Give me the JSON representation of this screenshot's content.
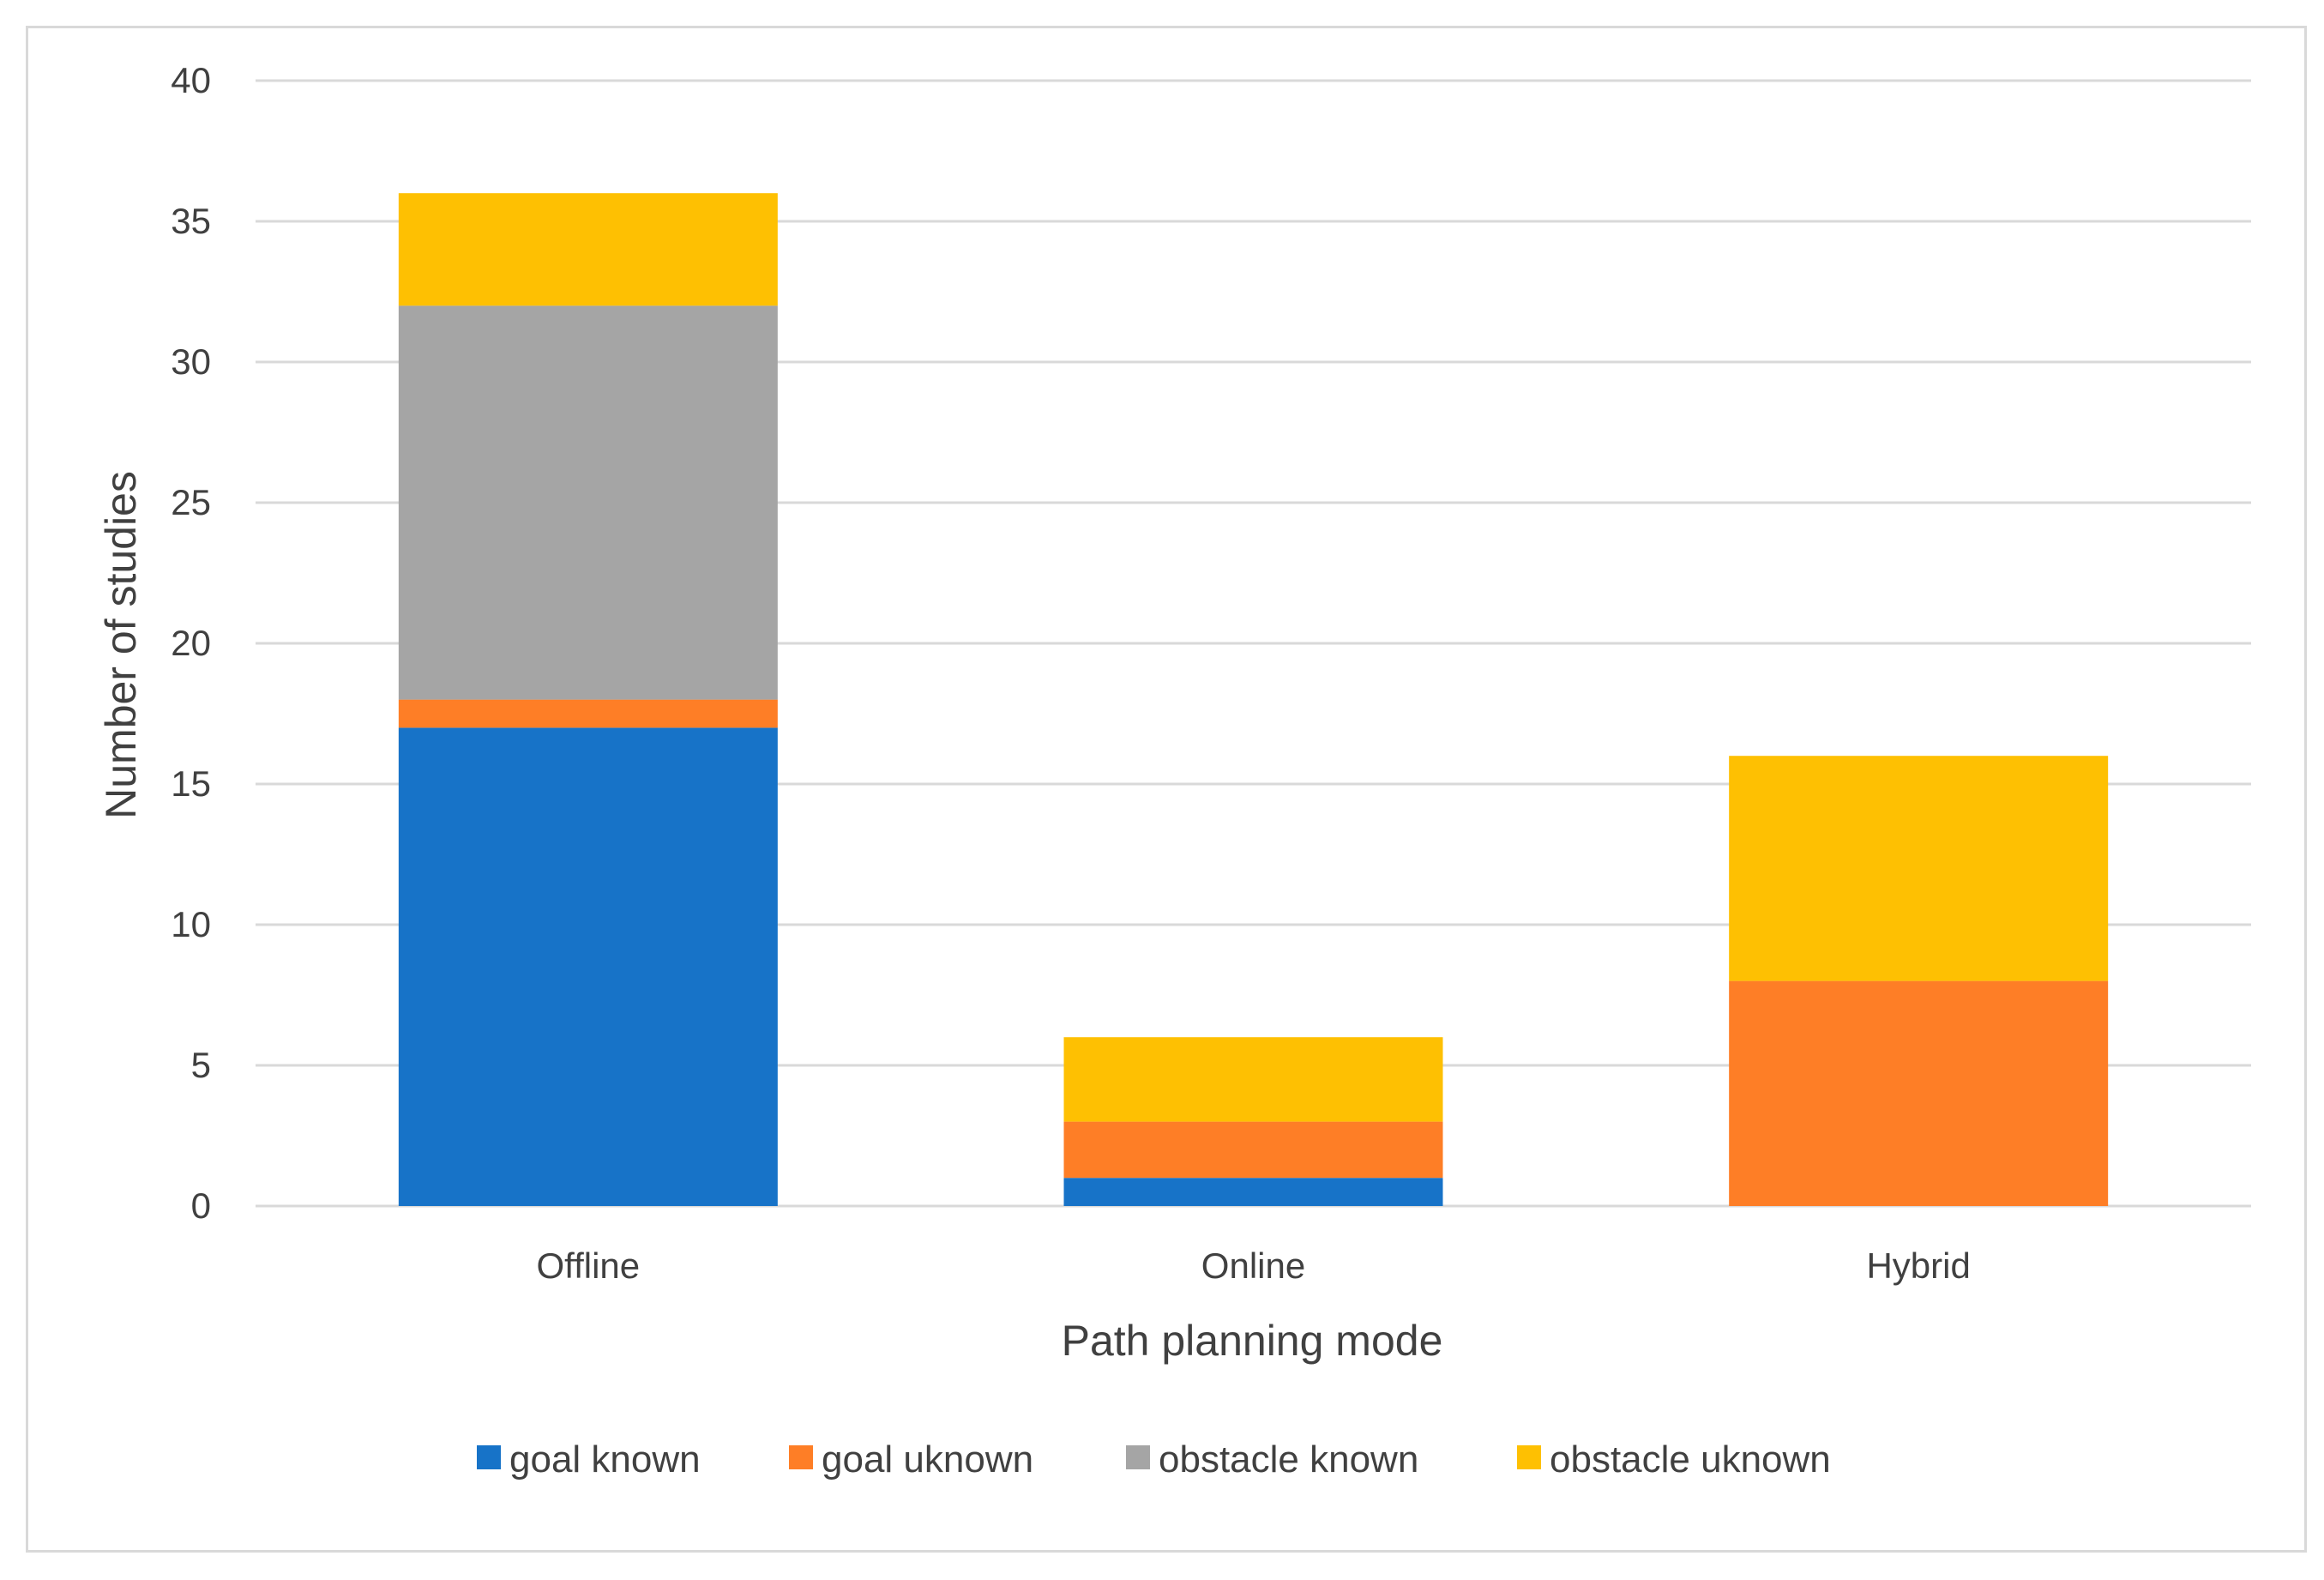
{
  "chart_data": {
    "type": "bar",
    "stacked": true,
    "categories": [
      "Offline",
      "Online",
      "Hybrid"
    ],
    "series": [
      {
        "name": "goal known",
        "color": "#1773C8",
        "values": [
          17,
          1,
          0
        ]
      },
      {
        "name": "goal uknown",
        "color": "#FE7E26",
        "values": [
          1,
          2,
          8
        ]
      },
      {
        "name": "obstacle known",
        "color": "#A5A5A5",
        "values": [
          14,
          0,
          0
        ]
      },
      {
        "name": "obstacle uknown",
        "color": "#FEC002",
        "values": [
          4,
          3,
          8
        ]
      }
    ],
    "title": "",
    "xlabel": "Path planning mode",
    "ylabel": "Number of studies",
    "ylim": [
      0,
      40
    ],
    "yticks": [
      0,
      5,
      10,
      15,
      20,
      25,
      30,
      35,
      40
    ],
    "grid": true,
    "legend_position": "bottom",
    "gridline_color": "#d9d9d9"
  }
}
